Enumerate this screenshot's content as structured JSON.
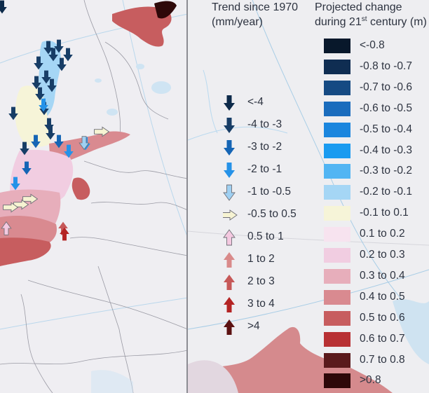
{
  "legend": {
    "trend": {
      "title": "Trend since 1970",
      "unit": "(mm/year)",
      "items": [
        {
          "label": "<-4",
          "fill": "#0d2a4a",
          "dir": "down"
        },
        {
          "label": "-4 to -3",
          "fill": "#173d66",
          "dir": "down"
        },
        {
          "label": "-3 to -2",
          "fill": "#1565b5",
          "dir": "down"
        },
        {
          "label": "-2 to -1",
          "fill": "#2592e8",
          "dir": "down"
        },
        {
          "label": "-1 to -0.5",
          "fill": "#9fd0f2",
          "dir": "down"
        },
        {
          "label": "-0.5 to 0.5",
          "fill": "#f6f3d2",
          "dir": "right"
        },
        {
          "label": "0.5 to 1",
          "fill": "#f4c9e0",
          "dir": "up"
        },
        {
          "label": "1 to 2",
          "fill": "#d98a8a",
          "dir": "up"
        },
        {
          "label": "2 to 3",
          "fill": "#c65858",
          "dir": "up"
        },
        {
          "label": "3 to 4",
          "fill": "#b42424",
          "dir": "up"
        },
        {
          "label": ">4",
          "fill": "#5c1212",
          "dir": "up"
        }
      ]
    },
    "projected": {
      "title": "Projected change",
      "subtitle_pre": "during 21",
      "subtitle_sup": "st",
      "subtitle_post": " century (m)",
      "items": [
        {
          "label": "<-0.8",
          "color": "#08182b"
        },
        {
          "label": "-0.8 to -0.7",
          "color": "#0f2d52"
        },
        {
          "label": "-0.7 to -0.6",
          "color": "#154a83"
        },
        {
          "label": "-0.6 to -0.5",
          "color": "#1a6cbd"
        },
        {
          "label": "-0.5 to -0.4",
          "color": "#1b86de"
        },
        {
          "label": "-0.4 to -0.3",
          "color": "#1a9bf0"
        },
        {
          "label": "-0.3 to -0.2",
          "color": "#52b5f3"
        },
        {
          "label": "-0.2 to -0.1",
          "color": "#a5d6f5"
        },
        {
          "label": "-0.1 to 0.1",
          "color": "#f6f4d8"
        },
        {
          "label": "0.1 to 0.2",
          "color": "#f7e3ef"
        },
        {
          "label": "0.2 to 0.3",
          "color": "#f1cde1"
        },
        {
          "label": "0.3 to 0.4",
          "color": "#e7aebb"
        },
        {
          "label": "0.4 to 0.5",
          "color": "#d98a90"
        },
        {
          "label": "0.5 to 0.6",
          "color": "#c75d5f"
        },
        {
          "label": "0.6 to 0.7",
          "color": "#b83134"
        },
        {
          "label": "0.7 to 0.8",
          "color": "#5a1a1c"
        },
        {
          "label": ">0.8",
          "color": "#2e0809"
        }
      ]
    }
  },
  "map_markers": [
    {
      "dir": "down",
      "cls": 1
    },
    {
      "dir": "down",
      "cls": 1
    },
    {
      "dir": "down",
      "cls": 1
    },
    {
      "dir": "down",
      "cls": 1
    },
    {
      "dir": "down",
      "cls": 1
    },
    {
      "dir": "down",
      "cls": 1
    },
    {
      "dir": "down",
      "cls": 1
    },
    {
      "dir": "down",
      "cls": 1
    },
    {
      "dir": "down",
      "cls": 1
    },
    {
      "dir": "down",
      "cls": 1
    },
    {
      "dir": "down",
      "cls": 1
    },
    {
      "dir": "down",
      "cls": 1
    },
    {
      "dir": "down",
      "cls": 1
    },
    {
      "dir": "down",
      "cls": 1
    },
    {
      "dir": "down",
      "cls": 1
    },
    {
      "dir": "down",
      "cls": 2
    },
    {
      "dir": "down",
      "cls": 2
    },
    {
      "dir": "down",
      "cls": 2
    },
    {
      "dir": "down",
      "cls": 3
    },
    {
      "dir": "down",
      "cls": 3
    },
    {
      "dir": "down",
      "cls": 3
    },
    {
      "dir": "down",
      "cls": 4
    },
    {
      "dir": "right",
      "cls": 5
    },
    {
      "dir": "right",
      "cls": 5
    },
    {
      "dir": "right",
      "cls": 5
    },
    {
      "dir": "right",
      "cls": 5
    },
    {
      "dir": "up",
      "cls": 6
    },
    {
      "dir": "up",
      "cls": 8
    },
    {
      "dir": "up",
      "cls": 9
    },
    {
      "dir": "down",
      "cls": 3
    },
    {
      "dir": "down",
      "cls": 0
    }
  ]
}
